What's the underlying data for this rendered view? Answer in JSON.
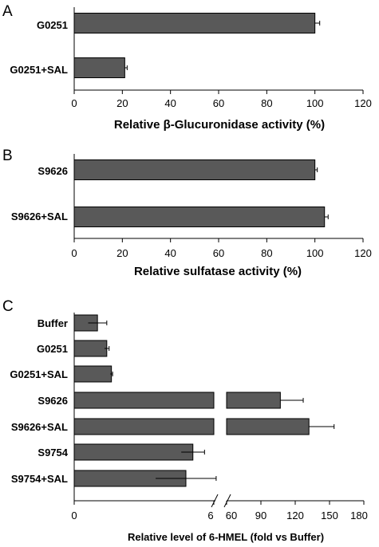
{
  "chart_data": [
    {
      "type": "bar",
      "orientation": "horizontal",
      "panel": "A",
      "categories": [
        "G0251",
        "G0251+SAL"
      ],
      "values": [
        100,
        21
      ],
      "errors": [
        2,
        1
      ],
      "xlabel": "Relative β-Glucuronidase activity (%)",
      "xlim": [
        0,
        120
      ],
      "xticks": [
        "0",
        "20",
        "40",
        "60",
        "80",
        "100",
        "120"
      ],
      "grid": false,
      "bar_color": "#595959"
    },
    {
      "type": "bar",
      "orientation": "horizontal",
      "panel": "B",
      "categories": [
        "S9626",
        "S9626+SAL"
      ],
      "values": [
        100,
        104
      ],
      "errors": [
        1,
        1.5
      ],
      "xlabel": "Relative sulfatase activity (%)",
      "xlim": [
        0,
        120
      ],
      "xticks": [
        "0",
        "20",
        "40",
        "60",
        "80",
        "100",
        "120"
      ],
      "grid": false,
      "bar_color": "#595959"
    },
    {
      "type": "bar",
      "orientation": "horizontal",
      "panel": "C",
      "axis_break": true,
      "categories": [
        "Buffer",
        "G0251",
        "G0251+SAL",
        "S9626",
        "S9626+SAL",
        "S9754",
        "S9754+SAL"
      ],
      "values": [
        1,
        1.4,
        1.6,
        107,
        132,
        5.1,
        4.8
      ],
      "errors": [
        0.4,
        0.1,
        0.05,
        20,
        22,
        0.5,
        1.3
      ],
      "xlabel": "Relative level of 6-HMEL (fold vs Buffer)",
      "segments": [
        {
          "xlim": [
            0,
            6
          ],
          "xticks": [
            "0",
            "6"
          ]
        },
        {
          "xlim": [
            60,
            180
          ],
          "xticks": [
            "60",
            "90",
            "120",
            "150",
            "180"
          ]
        }
      ],
      "grid": false,
      "bar_color": "#595959"
    }
  ]
}
